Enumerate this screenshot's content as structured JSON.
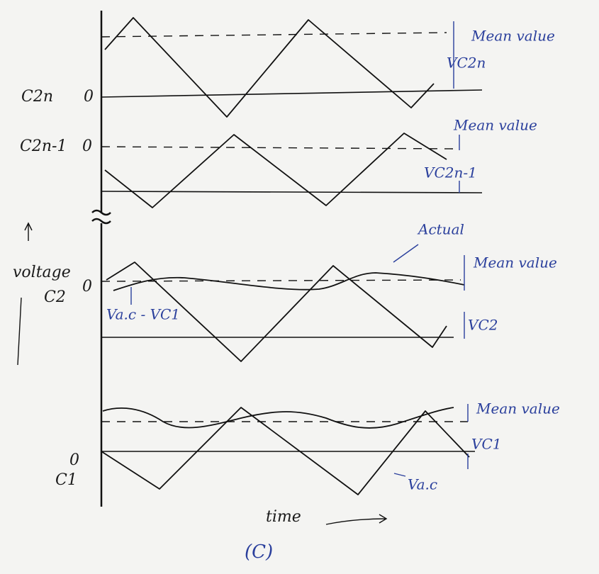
{
  "axis_labels": {
    "y": "voltage",
    "x": "time"
  },
  "rows": [
    {
      "name": "C2n",
      "zero": "0",
      "mean": "Mean value",
      "ripple": "VC2n"
    },
    {
      "name": "C2n-1",
      "zero": "0",
      "mean": "Mean value",
      "ripple": "VC2n-1"
    },
    {
      "name": "C2",
      "zero": "0",
      "mean": "Mean value",
      "ripple": "VC2",
      "actual": "Actual",
      "diff": "Va.c - VC1"
    },
    {
      "name": "C1",
      "zero": "0",
      "mean": "Mean value",
      "ripple": "VC1",
      "ac": "Va.c"
    }
  ],
  "caption": "(C)"
}
